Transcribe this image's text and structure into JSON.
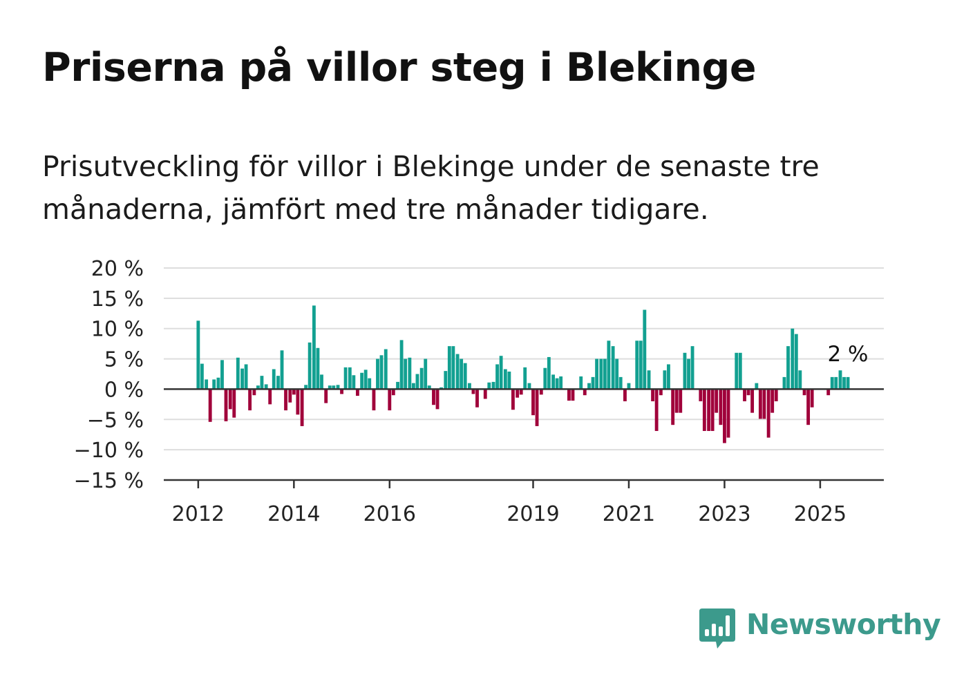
{
  "title": "Priserna på villor steg i Blekinge",
  "subtitle": "Prisutveckling för villor i Blekinge under de senaste tre månaderna, jämfört med tre månader tidigare.",
  "brand": {
    "name": "Newsworthy",
    "icon": "newsworthy-logo-icon"
  },
  "colors": {
    "positive": "#12a091",
    "negative": "#a0003a",
    "grid": "#dddddd",
    "axis": "#333333",
    "brand": "#3c9a8c"
  },
  "chart_data": {
    "type": "bar",
    "ylim": [
      -15,
      20
    ],
    "yticks": [
      20,
      15,
      10,
      5,
      0,
      -5,
      -10,
      -15
    ],
    "ytick_labels": [
      "20 %",
      "15 %",
      "10 %",
      "5 %",
      "0 %",
      "−5 %",
      "−10 %",
      "−15 %"
    ],
    "xtick_labels": [
      "2012",
      "2014",
      "2016",
      "2019",
      "2021",
      "2023",
      "2025"
    ],
    "xtick_positions": [
      2012.0,
      2014.0,
      2016.0,
      2019.0,
      2021.0,
      2023.0,
      2025.0
    ],
    "xlim": [
      2011.28,
      2026.33
    ],
    "bar_width_years": 0.07,
    "grid": true,
    "last_value_label": "2 %",
    "series": [
      {
        "x": [
          2012.0,
          2012.08,
          2012.17,
          2012.25,
          2012.33,
          2012.42,
          2012.5,
          2012.58,
          2012.67,
          2012.75,
          2012.83,
          2012.92,
          2013.0,
          2013.08,
          2013.17,
          2013.25,
          2013.33,
          2013.42,
          2013.5,
          2013.58,
          2013.67,
          2013.75,
          2013.83,
          2013.92,
          2014.0,
          2014.08,
          2014.17,
          2014.25,
          2014.33,
          2014.42,
          2014.5,
          2014.58,
          2014.67,
          2014.75,
          2014.83,
          2014.92,
          2015.0,
          2015.08,
          2015.17,
          2015.25,
          2015.33,
          2015.42,
          2015.5,
          2015.58,
          2015.67,
          2015.75,
          2015.83,
          2015.92,
          2016.0,
          2016.08,
          2016.17,
          2016.25,
          2016.33,
          2016.42,
          2016.5,
          2016.58,
          2016.67,
          2016.75,
          2016.83,
          2016.92,
          2017.0,
          2017.08,
          2017.17,
          2017.25,
          2017.33,
          2017.42,
          2017.5,
          2017.58,
          2017.67,
          2017.75,
          2017.83,
          2017.92,
          2018.0,
          2018.08,
          2018.17,
          2018.25,
          2018.33,
          2018.42,
          2018.5,
          2018.58,
          2018.67,
          2018.75,
          2018.83,
          2018.92,
          2019.0,
          2019.08,
          2019.17,
          2019.25,
          2019.33,
          2019.42,
          2019.5,
          2019.58,
          2019.67,
          2019.75,
          2019.83,
          2019.92,
          2020.0,
          2020.08,
          2020.17,
          2020.25,
          2020.33,
          2020.42,
          2020.5,
          2020.58,
          2020.67,
          2020.75,
          2020.83,
          2020.92,
          2021.0,
          2021.08,
          2021.17,
          2021.25,
          2021.33,
          2021.42,
          2021.5,
          2021.58,
          2021.67,
          2021.75,
          2021.83,
          2021.92,
          2022.0,
          2022.08,
          2022.17,
          2022.25,
          2022.33,
          2022.42,
          2022.5,
          2022.58,
          2022.67,
          2022.75,
          2022.83,
          2022.92,
          2023.0,
          2023.08,
          2023.17,
          2023.25,
          2023.33,
          2023.42,
          2023.5,
          2023.58,
          2023.67,
          2023.75,
          2023.83,
          2023.92,
          2024.0,
          2024.08,
          2024.17,
          2024.25,
          2024.33,
          2024.42,
          2024.5,
          2024.58,
          2024.67,
          2024.75,
          2024.83,
          2024.92,
          2025.0,
          2025.08,
          2025.17,
          2025.25,
          2025.33,
          2025.42,
          2025.5,
          2025.58
        ],
        "values": [
          11.3,
          4.2,
          1.6,
          -5.4,
          1.6,
          1.9,
          4.8,
          -5.3,
          -3.3,
          -4.7,
          5.2,
          3.4,
          4.1,
          -3.5,
          -1.0,
          0.6,
          2.2,
          0.8,
          -2.5,
          3.3,
          2.2,
          6.4,
          -3.5,
          -2.2,
          -0.9,
          -4.2,
          -6.1,
          0.7,
          7.7,
          13.8,
          6.8,
          2.4,
          -2.3,
          0.6,
          0.6,
          0.7,
          -0.8,
          3.6,
          3.6,
          2.3,
          -1.1,
          2.7,
          3.2,
          1.8,
          -3.5,
          5.0,
          5.6,
          6.6,
          -3.5,
          -1.0,
          1.2,
          8.1,
          5.0,
          5.2,
          1.0,
          2.5,
          3.5,
          5.0,
          0.6,
          -2.6,
          -3.3,
          0.3,
          3.0,
          7.1,
          7.1,
          5.8,
          5.0,
          4.3,
          1.0,
          -0.8,
          -3.0,
          0.0,
          -1.6,
          1.1,
          1.2,
          4.1,
          5.5,
          3.3,
          2.9,
          -3.4,
          -1.4,
          -0.9,
          3.6,
          1.0,
          -4.3,
          -6.1,
          -0.9,
          3.5,
          5.3,
          2.4,
          1.8,
          2.1,
          0.0,
          -1.9,
          -1.9,
          0.0,
          2.1,
          -1.0,
          1.0,
          2.0,
          5.0,
          5.0,
          5.0,
          8.0,
          7.1,
          5.0,
          2.0,
          -2.0,
          1.0,
          0.0,
          8.0,
          8.0,
          13.1,
          3.1,
          -2.0,
          -6.9,
          -1.0,
          3.1,
          4.1,
          -5.9,
          -3.9,
          -3.9,
          6.0,
          5.0,
          7.1,
          0.0,
          -2.0,
          -6.9,
          -6.9,
          -6.9,
          -3.9,
          -5.9,
          -8.9,
          -8.0,
          0.0,
          6.0,
          6.0,
          -2.0,
          -1.0,
          -3.9,
          1.0,
          -4.9,
          -4.9,
          -8.0,
          -3.9,
          -2.0,
          0.0,
          2.0,
          7.1,
          10.0,
          9.1,
          3.1,
          -1.0,
          -5.9,
          -3.0,
          0.0,
          0.0,
          0.0,
          -1.0,
          2.0,
          2.0,
          3.1,
          2.0,
          2.0
        ]
      }
    ]
  }
}
